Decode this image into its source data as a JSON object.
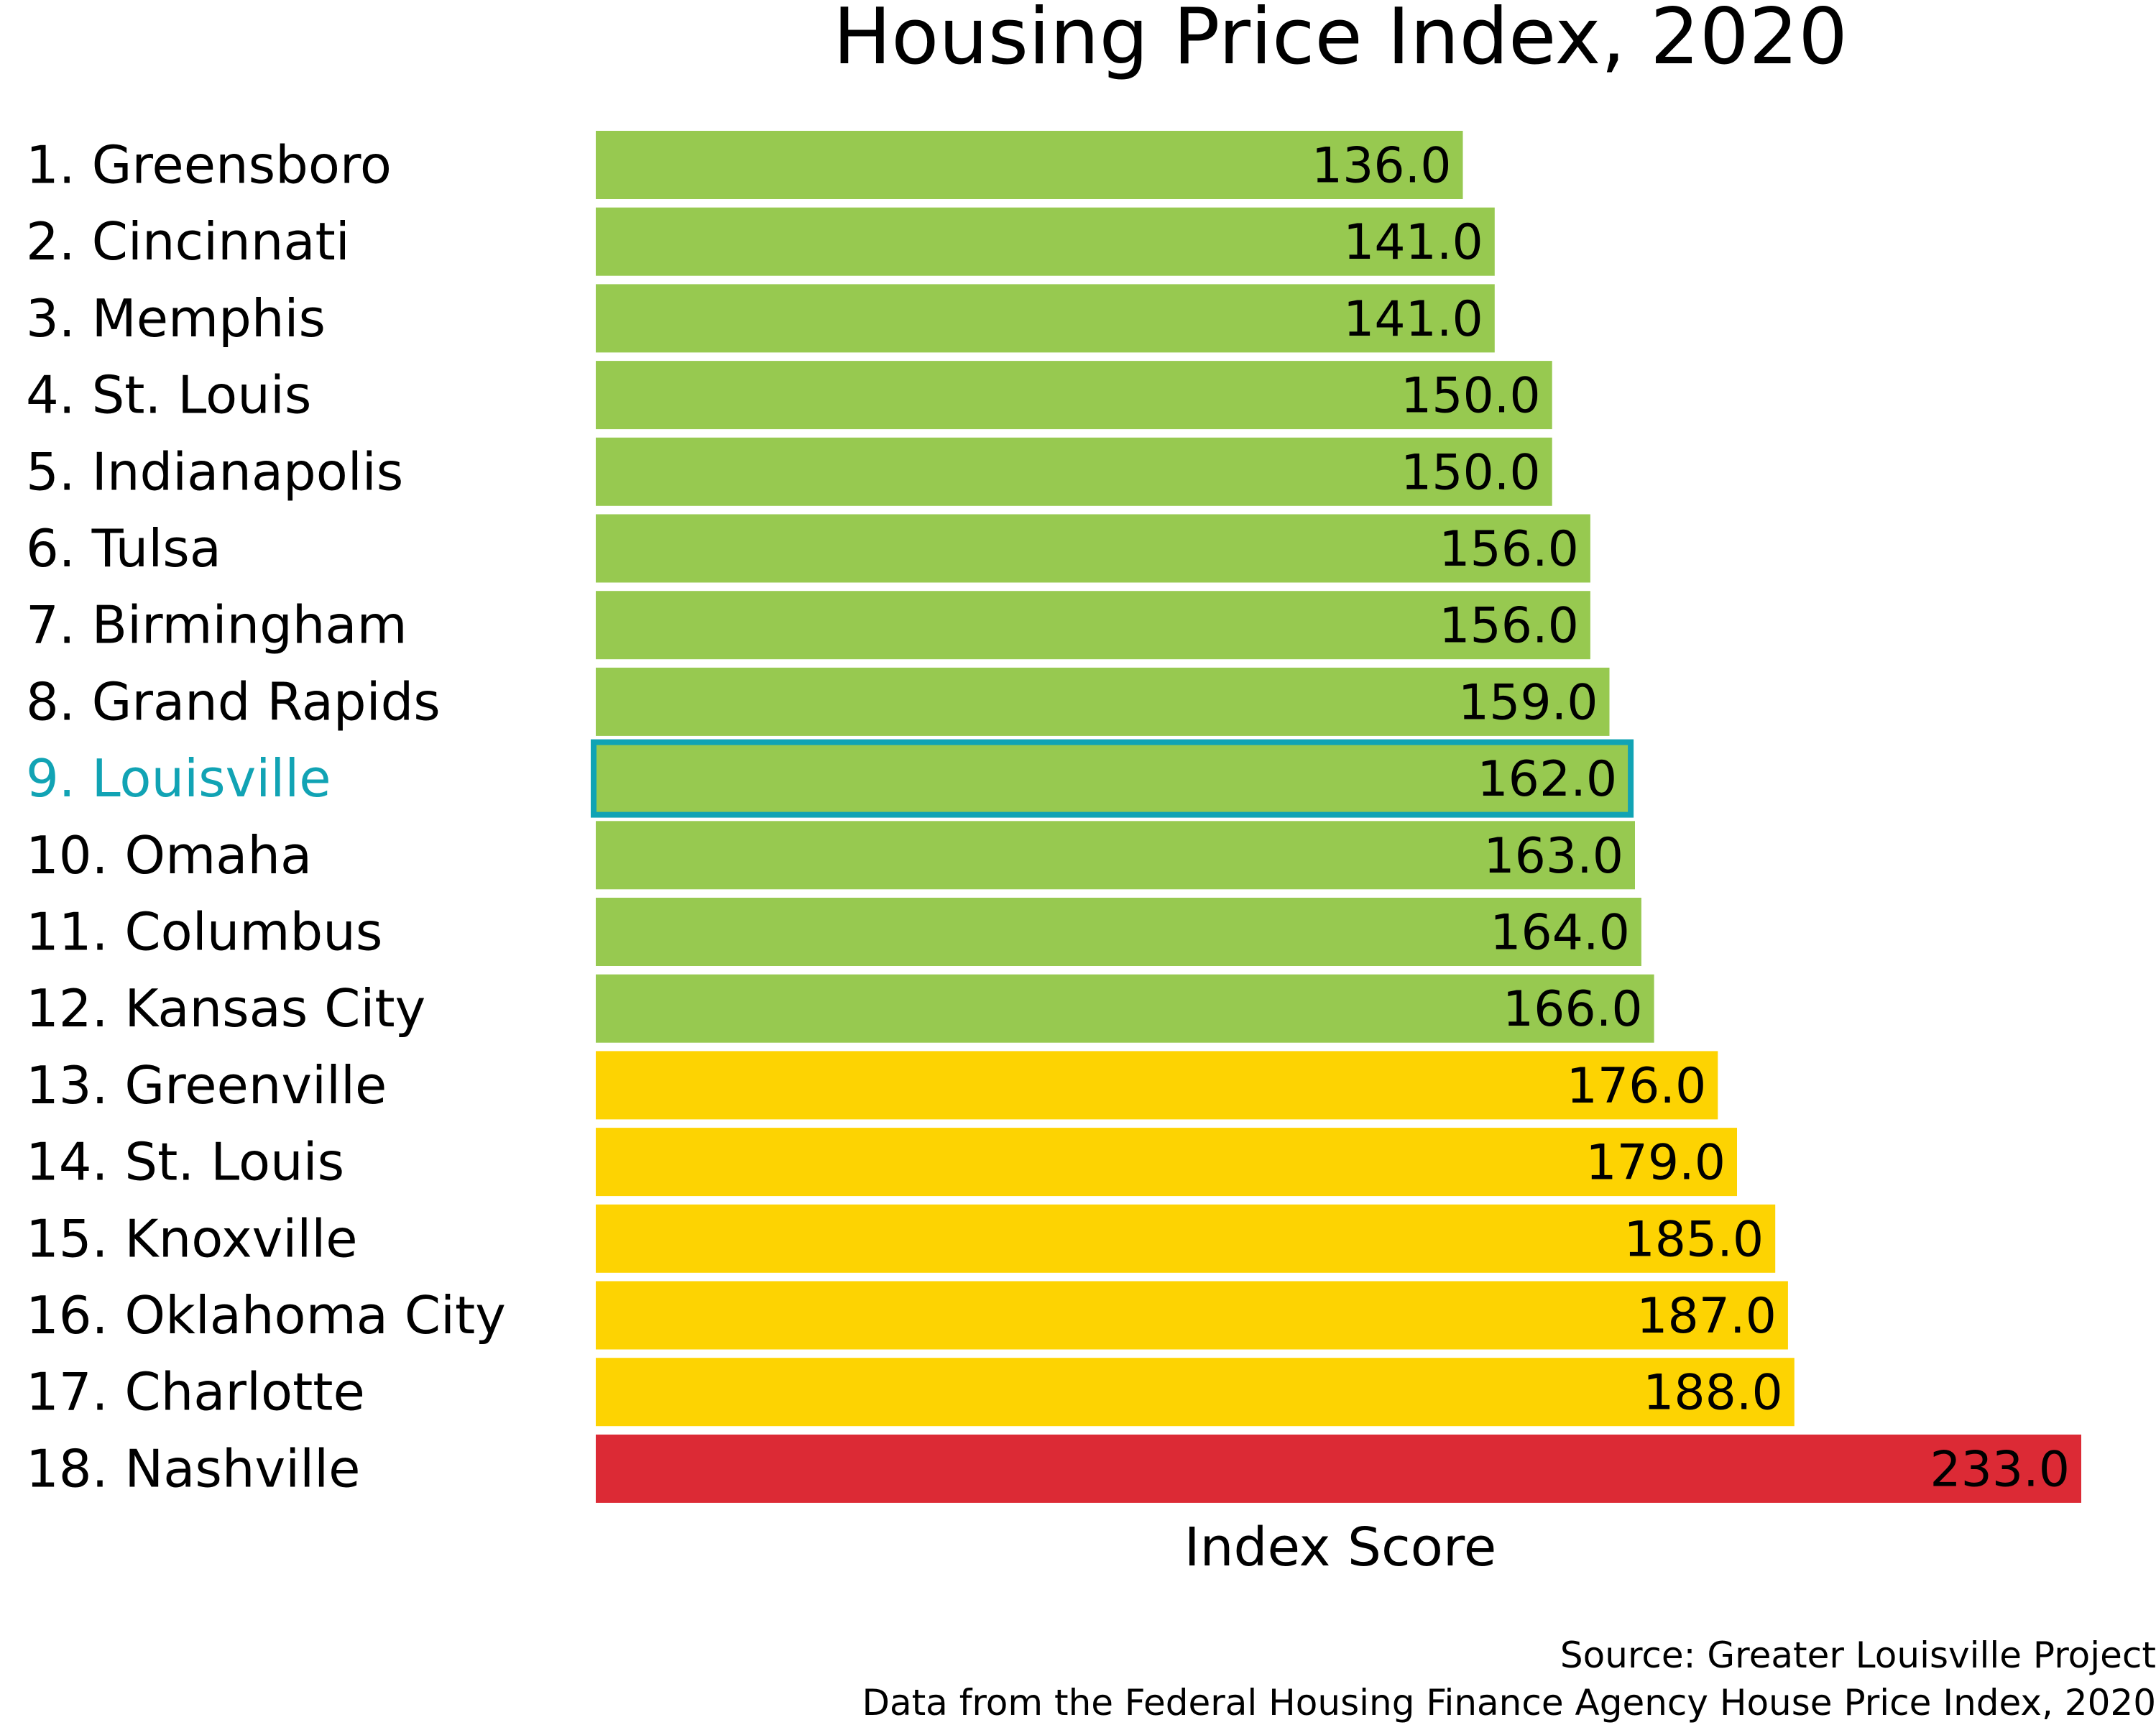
{
  "chart_data": {
    "type": "bar",
    "orientation": "horizontal",
    "title": "Housing Price Index, 2020",
    "xlabel": "Index Score",
    "ylabel": "",
    "xlim": [
      0,
      233
    ],
    "grid": false,
    "legend": "none",
    "categories": [
      "1. Greensboro",
      "2. Cincinnati",
      "3. Memphis",
      "4. St. Louis",
      "5. Indianapolis",
      "6. Tulsa",
      "7. Birmingham",
      "8. Grand Rapids",
      "9. Louisville",
      "10. Omaha",
      "11. Columbus",
      "12. Kansas City",
      "13. Greenville",
      "14. St. Louis",
      "15. Knoxville",
      "16. Oklahoma City",
      "17. Charlotte",
      "18. Nashville"
    ],
    "values": [
      136,
      141,
      141,
      150,
      150,
      156,
      156,
      159,
      162,
      163,
      164,
      166,
      176,
      179,
      185,
      187,
      188,
      233
    ],
    "value_labels": [
      "136.0",
      "141.0",
      "141.0",
      "150.0",
      "150.0",
      "156.0",
      "156.0",
      "159.0",
      "162.0",
      "163.0",
      "164.0",
      "166.0",
      "176.0",
      "179.0",
      "185.0",
      "187.0",
      "188.0",
      "233.0"
    ],
    "bar_colors": [
      "#97c950",
      "#97c950",
      "#97c950",
      "#97c950",
      "#97c950",
      "#97c950",
      "#97c950",
      "#97c950",
      "#97c950",
      "#97c950",
      "#97c950",
      "#97c950",
      "#fdd302",
      "#fdd302",
      "#fdd302",
      "#fdd302",
      "#fdd302",
      "#dc2a35"
    ],
    "highlight_index": 8,
    "highlight_color": "#11a3b4",
    "label_color": "#000000"
  },
  "source": {
    "line1": "Source: Greater Louisville Project",
    "line2": "Data from the Federal Housing Finance Agency House Price Index, 2020"
  }
}
